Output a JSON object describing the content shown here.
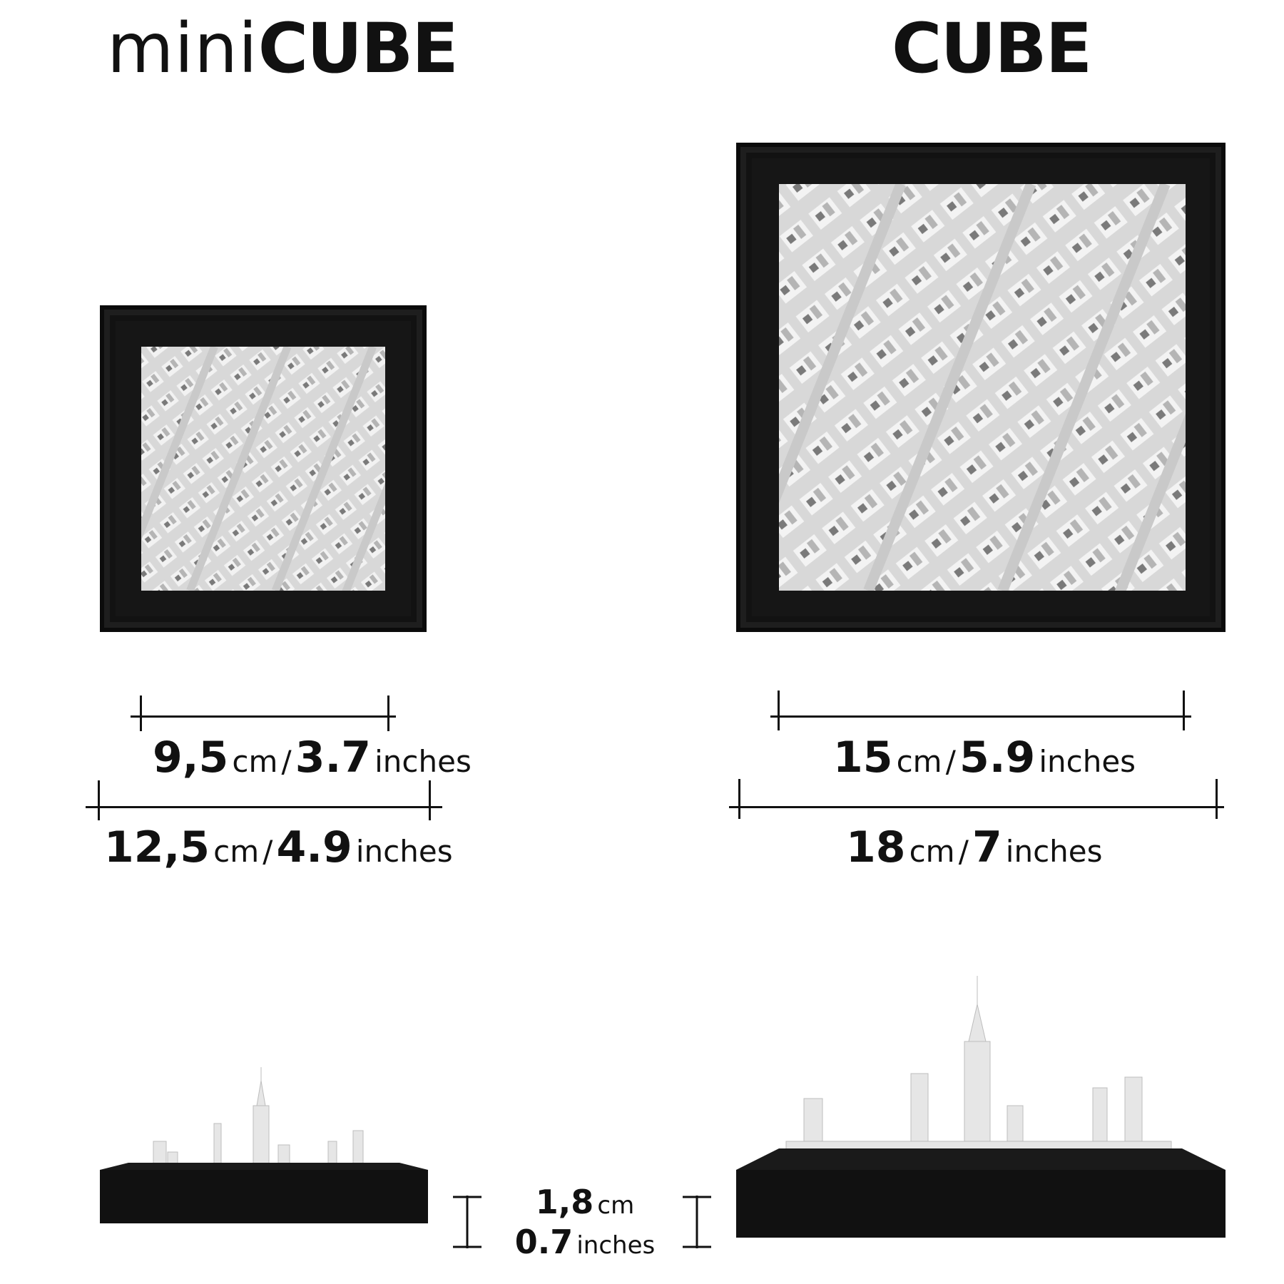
{
  "titles": {
    "mini_prefix": "mini",
    "mini_suffix": "CUBE",
    "cube": "CUBE"
  },
  "mini": {
    "inner": {
      "value": "9,5",
      "unit": "cm",
      "value_alt": "3.7",
      "unit_alt": "inches"
    },
    "outer": {
      "value": "12,5",
      "unit": "cm",
      "value_alt": "4.9",
      "unit_alt": "inches"
    }
  },
  "cube": {
    "inner": {
      "value": "15",
      "unit": "cm",
      "value_alt": "5.9",
      "unit_alt": "inches"
    },
    "outer": {
      "value": "18",
      "unit": "cm",
      "value_alt": "7",
      "unit_alt": "inches"
    }
  },
  "height": {
    "value": "1,8",
    "unit": "cm",
    "value_alt": "0.7",
    "unit_alt": "inches"
  },
  "separator": "/",
  "colors": {
    "frame": "#161616",
    "model": "#e6e6e6",
    "ink": "#111111"
  }
}
